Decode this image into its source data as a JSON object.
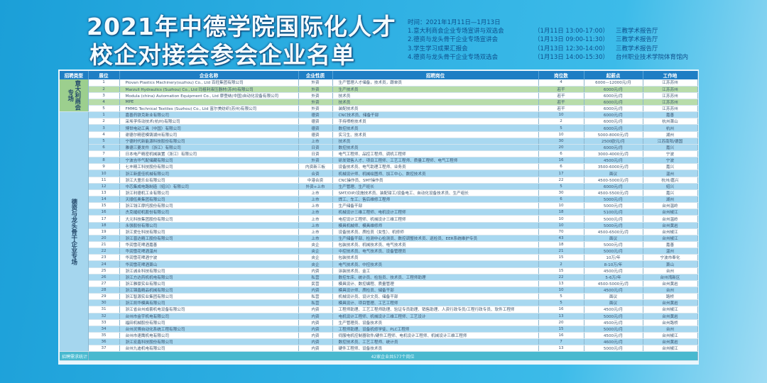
{
  "title": {
    "line1": "2021年中德学院国际化人才",
    "line2": "校企对接会参会企业名单"
  },
  "schedule": {
    "time": "时间：2021年1月11日—1月13日",
    "events": [
      {
        "name": "1.意大利商会企业专场宣讲与双选会",
        "time": "（1月11日 13:00-17:00）",
        "place": "三教学术报告厅"
      },
      {
        "name": "2.德资与龙头骨干企业专场宣讲会",
        "time": "（1月13日 09:00-11:30）",
        "place": "三教学术报告厅"
      },
      {
        "name": "3.学生学习成果汇报会",
        "time": "（1月13日 12:30-14:00）",
        "place": "三教学术报告厅"
      },
      {
        "name": "4.德资与龙头骨干企业专场双选会",
        "time": "（1月13日 14:00-15:30）",
        "place": "台州职业技术学院体育馆内"
      }
    ]
  },
  "table": {
    "headers": [
      "招聘类型",
      "展位",
      "企业名称",
      "企业性质",
      "招聘岗位",
      "岗位数",
      "起薪点",
      "工作地"
    ],
    "groups": [
      {
        "category": "意大利商会专场",
        "rows": [
          [
            "1",
            "Piovan Plastics Machinery(suzhou) Co., Ltd 百旺集团有限公司",
            "外资",
            "生产管理人才储备，技术员，跟单员",
            "4",
            "6000—12000元/月",
            "江苏苏州"
          ],
          [
            "2",
            "Marzull Hydraulics (Suzhou) Co., Ltd 玛祖利液压器材(苏州)有限公司",
            "外资",
            "生产技术员",
            "若干",
            "6000元/月",
            "江苏苏州"
          ],
          [
            "3",
            "Modula (china) Automation Equipment Co., Ltd 摩登纳(中国)自动化设备有限公司",
            "外资",
            "技术员",
            "若干",
            "6000元/月",
            "江苏苏州"
          ],
          [
            "4",
            "MPE",
            "外资",
            "技术员",
            "若干",
            "6000元/月",
            "江苏苏州"
          ],
          [
            "5",
            "FMMG Technical Textiles (Suzhou) Co., Ltd 富尔美纺织(苏州)有限公司",
            "外资",
            "装配技术员",
            "若干",
            "6000元/月",
            "江苏苏州"
          ]
        ]
      },
      {
        "category": "德资与龙头骨干企业专场",
        "rows": [
          [
            "1",
            "嘉善药铁克新业有限公司",
            "德资",
            "CNC技术员、储备干部",
            "10",
            "6000元/月",
            "嘉善"
          ],
          [
            "2",
            "采埃孚传动技术(杭州)有限公司",
            "德资",
            "手持喷枪技术员",
            "2",
            "6000元/月",
            "杭州萧山"
          ],
          [
            "3",
            "博世电动工具（中国）有限公司",
            "德资",
            "数控技术员",
            "5",
            "6000元/月",
            "杭州"
          ],
          [
            "4",
            "谢德尔精密模铸湖州有限公司",
            "德资",
            "实习生、技术员",
            "10",
            "5000-8000元/月",
            "湖州"
          ],
          [
            "5",
            "宁德时代新能源科技股份有限公司",
            "上市",
            "技术员",
            "30",
            "2500欧元/月",
            "江苏南阳/德国"
          ],
          [
            "6",
            "雅德三菱发件（浙江）有限公司",
            "日资",
            "数控技术员",
            "20",
            "6000元/月",
            "嘉兴"
          ],
          [
            "7",
            "日本电产精密机械装置（浙江）有限公司",
            "日资",
            "电气工程师、品控工程师、调机工程师",
            "6",
            "3000-4000元/月",
            "宁波"
          ],
          [
            "8",
            "宁波吉华气配储藏有限公司",
            "外资",
            "研发销售人才、项目工程师、工艺工程师、质量工程师、电气工程师",
            "16",
            "4500元/月",
            "宁波"
          ],
          [
            "9",
            "七丰精工科技股份有限公司",
            "内资新三板",
            "设备技术员、电气助理工程师、业务员",
            "6",
            "3500-6000元/月",
            "嘉兴"
          ],
          [
            "10",
            "浙江新盛佳机械有限公司",
            "合资",
            "机械设计师、机械绘图师、加工中心、数控技术员",
            "17",
            "面议",
            "温州"
          ],
          [
            "11",
            "浙江大童乐业有限公司",
            "中港合资",
            "CNC操作员、SMT操作员",
            "22",
            "4500-5000元/月",
            "杭州/嘉兴"
          ],
          [
            "12",
            "中芯集成电路制造（绍兴）有限公司",
            "外资+上市",
            "生产管理、生产班长",
            "5",
            "6000元/月",
            "绍兴"
          ],
          [
            "13",
            "浙江利德机工业有限公司",
            "上市",
            "SMT/DIP/设施技术员、装配钳工/设备电工、自动化设备技术员、生产组长",
            "30",
            "4500-5500元/月",
            "嘉兴"
          ],
          [
            "14",
            "天顺伍奥集团有限公司",
            "上市",
            "焊工、车工、售后维修工程师",
            "6",
            "5000元/月",
            "湖州"
          ],
          [
            "15",
            "浙江钱江摩托股份有限公司",
            "上市",
            "生产储备干部",
            "10",
            "5000元/月",
            "台州温岭"
          ],
          [
            "16",
            "杰克缝纫机股份有限公司",
            "上市",
            "机械设计三维工程师、电机设计工程师",
            "18",
            "5100元/月",
            "台州椒江"
          ],
          [
            "17",
            "大元科技集团股份有限公司",
            "上市",
            "电控设计工程师、机械设计三维工程师",
            "10",
            "5000元/月",
            "台州温岭"
          ],
          [
            "18",
            "永强股份有限公司",
            "上市",
            "模具机械师、模具维修师",
            "10",
            "5000元/月",
            "台州黄岩"
          ],
          [
            "19",
            "浙江爱仕科技有限公司",
            "上市",
            "设备技术员、质检员（女性）、机修师",
            "70",
            "4500-6500元/月",
            "台州椒江"
          ],
          [
            "20",
            "浙江晋达精工股份有限公司",
            "上市",
            "生产储备干部、检测中心检测员、数控调整技术员、巡检员、EER系统维护专员",
            "43",
            "面议",
            "台州椒江"
          ],
          [
            "21",
            "华润雪花啤酒嘉善",
            "央企",
            "包装技术员、机械技术员、电气技术员",
            "18",
            "5000元/月",
            "嘉善"
          ],
          [
            "22",
            "华润雪花啤酒温州",
            "央企",
            "中控技术员、电气技术员、设备管理员",
            "21",
            "5000元/月",
            "温州"
          ],
          [
            "23",
            "华润雪花啤酒宁波",
            "央企",
            "包装技术员",
            "15",
            "10万/年",
            "宁波市奉化"
          ],
          [
            "24",
            "华润雪花啤酒萧山",
            "央企",
            "电气技术员、中控技术员",
            "2",
            "8-10万/年",
            "萧山"
          ],
          [
            "25",
            "浙江诚业科技有限公司",
            "内资",
            "涂装技术员、金工",
            "15",
            "4500元/月",
            "台州"
          ],
          [
            "26",
            "浙江方达药机机电有限公司",
            "私营",
            "数控车床、统计员、检验员、技术员、工程师助理",
            "22",
            "5-6万/年",
            "台州湾新区"
          ],
          [
            "27",
            "浙江雅豪实业有限公司",
            "民营",
            "模具设计、数控编程、质量管理",
            "13",
            "4500-5000元/月",
            "台州黄岩"
          ],
          [
            "28",
            "浙江锦鑫精品机械有限公司",
            "内资",
            "模具设计师、质检员、储备干部",
            "10",
            "4500元/月",
            "台州"
          ],
          [
            "29",
            "浙江智源实业集团有限公司",
            "私营",
            "机械设计员、设计文员、储备干部",
            "5",
            "面议",
            "路桥"
          ],
          [
            "30",
            "浙江凯华模具有限公司",
            "私营",
            "模具设计、项目管理、工艺工程师",
            "5",
            "面议",
            "台州黄岩"
          ],
          [
            "31",
            "浙江省台州成套机电设备有限公司",
            "内资",
            "工程师助理、工艺工程师助理、验证专员助理、销售助理、人资行政专员/工程行政专员、软件工程师",
            "16",
            "4500元/月",
            "台州椒江"
          ],
          [
            "32",
            "台州市金宇机电有限公司",
            "内资",
            "电机设计工程师、机械设计三维工程师、工艺设计",
            "13",
            "5000元/月",
            "台州黄岩"
          ],
          [
            "33",
            "福田机械股份有限公司",
            "内资",
            "生产管理员、设备技术员",
            "20",
            "4500元/月",
            "台州路桥"
          ],
          [
            "34",
            "台州灵博自动化系统工程有限公司",
            "内资",
            "工程师助理、设备机修学徒、PLC工程师",
            "15",
            "5000元/月",
            "台州"
          ],
          [
            "35",
            "台州市速鹰机电有限公司",
            "内资",
            "伺服电机控制器软件/硬件工程师、电机设计工程师、机械设计三维工程师",
            "16",
            "4500元/月",
            "台州椒江"
          ],
          [
            "36",
            "浙江宏鑫科技股份有限公司",
            "内资",
            "数控技术员、工艺工程师、统计员",
            "7",
            "4600元/月",
            "台州黄岩"
          ],
          [
            "37",
            "台州九迪机电有限公司",
            "内资",
            "硬件工程师、设备技术员",
            "13",
            "5000元/月",
            "台州椒江"
          ]
        ]
      }
    ],
    "footer": {
      "label": "招聘需求统计",
      "summary": "42家企业共577个岗位"
    }
  },
  "colors": {
    "header": "#1e7ec4",
    "group1": "#b8dcaa",
    "group2": "#a8d8f0",
    "background": "#2fb0e3"
  }
}
